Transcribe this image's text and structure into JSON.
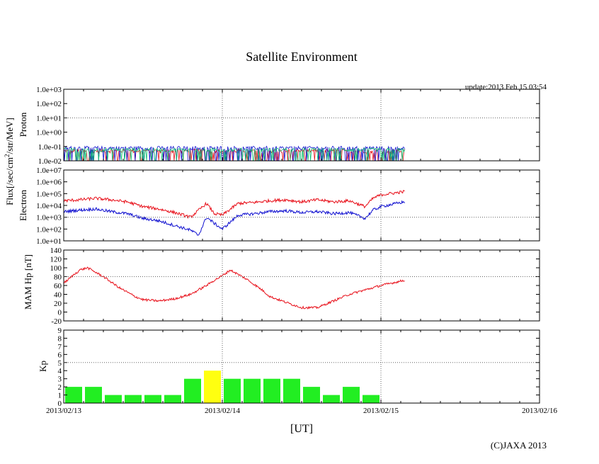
{
  "title": "Satellite Environment",
  "update_text": "update:2013 Feb 15 03:54",
  "copyright": "(C)JAXA 2013",
  "x_axis_label": "[UT]",
  "flux_label": "Flux[/sec/cm",
  "flux_label_sup": "2",
  "flux_label_rest": "/str/MeV]",
  "x_ticks": [
    "2013/02/13",
    "2013/02/14",
    "2013/02/15",
    "2013/02/16"
  ],
  "colors": {
    "red": "#e8111b",
    "blue": "#1010d0",
    "green": "#10c070",
    "kp_green": "#22ee22",
    "kp_yellow": "#ffff10"
  },
  "chart_data": [
    {
      "type": "line",
      "name": "proton",
      "title": "",
      "ylabel": "Proton",
      "yscale": "log",
      "ylim": [
        0.01,
        1000
      ],
      "yticks": [
        0.01,
        0.1,
        1,
        10,
        100,
        1000
      ],
      "ytick_labels": [
        "1.0e-02",
        "1.0e-01",
        "1.0e+00",
        "1.0e+01",
        "1.0e+02",
        "1.0e+03"
      ],
      "xlim_days": [
        0,
        3
      ],
      "series": [
        {
          "name": "red",
          "description": "noisy near 0.05",
          "base": 0.05,
          "end_day": 2.15
        },
        {
          "name": "blue",
          "description": "noisy near 0.08",
          "base": 0.08,
          "end_day": 2.15
        },
        {
          "name": "green",
          "description": "noisy near 0.06",
          "base": 0.06,
          "end_day": 2.15
        }
      ]
    },
    {
      "type": "line",
      "name": "electron",
      "ylabel": "Electron",
      "yscale": "log",
      "ylim": [
        10,
        10000000
      ],
      "yticks": [
        10,
        100,
        1000,
        10000,
        100000,
        1000000,
        10000000
      ],
      "ytick_labels": [
        "1.0e+01",
        "1.0e+02",
        "1.0e+03",
        "1.0e+04",
        "1.0e+05",
        "1.0e+06",
        "1.0e+07"
      ],
      "series": [
        {
          "name": "red",
          "x": [
            0,
            0.1,
            0.2,
            0.3,
            0.4,
            0.5,
            0.6,
            0.7,
            0.8,
            0.9,
            0.95,
            1.0,
            1.1,
            1.2,
            1.3,
            1.4,
            1.5,
            1.6,
            1.7,
            1.8,
            1.9,
            1.95,
            2.0,
            2.1,
            2.15
          ],
          "y": [
            25000,
            30000,
            40000,
            30000,
            20000,
            8000,
            5000,
            2500,
            1000,
            15000,
            2000,
            1500,
            15000,
            18000,
            25000,
            30000,
            20000,
            30000,
            20000,
            25000,
            8000,
            40000,
            80000,
            120000,
            150000
          ]
        },
        {
          "name": "blue",
          "x": [
            0,
            0.1,
            0.2,
            0.3,
            0.4,
            0.5,
            0.6,
            0.7,
            0.8,
            0.85,
            0.9,
            0.95,
            1.0,
            1.1,
            1.2,
            1.3,
            1.4,
            1.5,
            1.6,
            1.7,
            1.8,
            1.9,
            1.95,
            2.0,
            2.1,
            2.15
          ],
          "y": [
            3000,
            4000,
            5000,
            3000,
            2000,
            800,
            500,
            200,
            80,
            30,
            1000,
            300,
            100,
            1500,
            2000,
            3000,
            3500,
            2500,
            3000,
            2000,
            2500,
            800,
            4000,
            8000,
            15000,
            20000
          ]
        }
      ]
    },
    {
      "type": "line",
      "name": "mam_hp",
      "ylabel": "MAM Hp [nT]",
      "ylim": [
        -20,
        140
      ],
      "yticks": [
        -20,
        0,
        20,
        40,
        60,
        80,
        100,
        120,
        140
      ],
      "series": [
        {
          "name": "red",
          "x": [
            0,
            0.1,
            0.15,
            0.25,
            0.35,
            0.45,
            0.5,
            0.6,
            0.7,
            0.8,
            0.9,
            0.95,
            1.0,
            1.05,
            1.15,
            1.25,
            1.3,
            1.4,
            1.5,
            1.6,
            1.7,
            1.8,
            1.9,
            2.0,
            2.1,
            2.15
          ],
          "y": [
            65,
            95,
            100,
            80,
            55,
            35,
            28,
            25,
            30,
            40,
            60,
            72,
            82,
            95,
            75,
            50,
            35,
            22,
            10,
            10,
            25,
            40,
            50,
            60,
            68,
            72
          ]
        }
      ]
    },
    {
      "type": "bar",
      "name": "kp",
      "ylabel": "Kp",
      "ylim": [
        0,
        9
      ],
      "yticks": [
        0,
        1,
        2,
        3,
        4,
        5,
        6,
        7,
        8,
        9
      ],
      "bar_width_days": 0.125,
      "x_start_days": [
        0,
        0.125,
        0.25,
        0.375,
        0.5,
        0.625,
        0.75,
        0.875,
        1.0,
        1.125,
        1.25,
        1.375,
        1.5,
        1.625,
        1.75,
        1.875,
        2.0
      ],
      "values": [
        2,
        2,
        1,
        1,
        1,
        1,
        3,
        4,
        3,
        3,
        3,
        3,
        2,
        1,
        2,
        1,
        0
      ],
      "bar_colors": [
        "green",
        "green",
        "green",
        "green",
        "green",
        "green",
        "green",
        "yellow",
        "green",
        "green",
        "green",
        "green",
        "green",
        "green",
        "green",
        "green",
        "green"
      ]
    }
  ]
}
